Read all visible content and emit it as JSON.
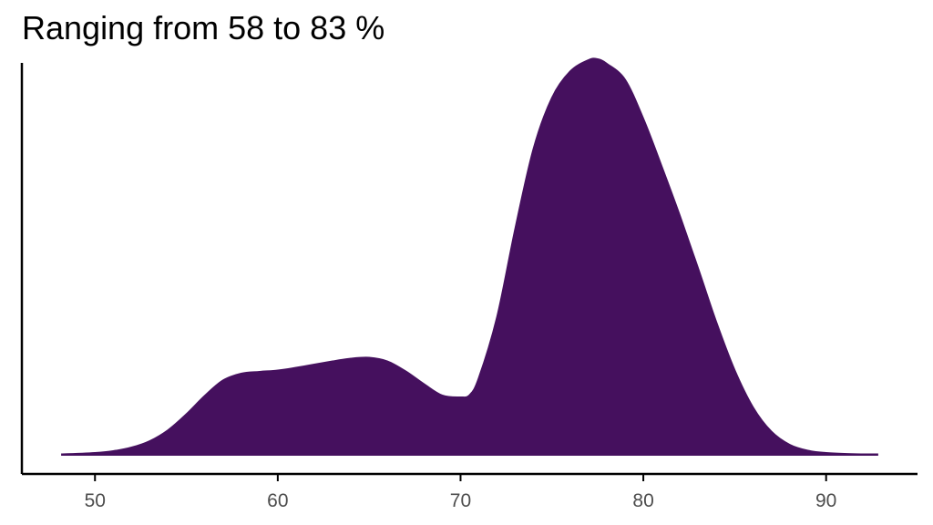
{
  "chart_data": {
    "type": "area",
    "title": "Ranging from 58 to 83 %",
    "xlabel": "",
    "ylabel": "",
    "xlim": [
      46,
      95
    ],
    "ylim": [
      0,
      0.086
    ],
    "x_ticks": [
      "50",
      "60",
      "70",
      "80",
      "90"
    ],
    "y_ticks_shown": false,
    "grid": false,
    "legend": "none",
    "fill_color": "#45105e",
    "series": [
      {
        "x": [
          48.2,
          50,
          51,
          52,
          53,
          54,
          55,
          56,
          57,
          58,
          59,
          60,
          61,
          62,
          63,
          64,
          65,
          66,
          67,
          68,
          69,
          70,
          70.5,
          71,
          72,
          73,
          74,
          75,
          76,
          77,
          77.5,
          78,
          79,
          80,
          81,
          82,
          83,
          84,
          85,
          86,
          87,
          88,
          89,
          90,
          91,
          92,
          92.8
        ],
        "y": [
          0.0001,
          0.0004,
          0.0008,
          0.0016,
          0.003,
          0.0054,
          0.0089,
          0.0129,
          0.0163,
          0.0178,
          0.0182,
          0.0185,
          0.0191,
          0.0198,
          0.0205,
          0.0211,
          0.0213,
          0.0205,
          0.0183,
          0.0155,
          0.013,
          0.0126,
          0.0131,
          0.0168,
          0.0302,
          0.0497,
          0.0672,
          0.0783,
          0.0841,
          0.0866,
          0.0868,
          0.0858,
          0.0823,
          0.0737,
          0.0633,
          0.0524,
          0.0408,
          0.029,
          0.0185,
          0.0104,
          0.0051,
          0.0022,
          0.0009,
          0.0004,
          0.0002,
          0.0001,
          0.0001
        ]
      }
    ]
  }
}
